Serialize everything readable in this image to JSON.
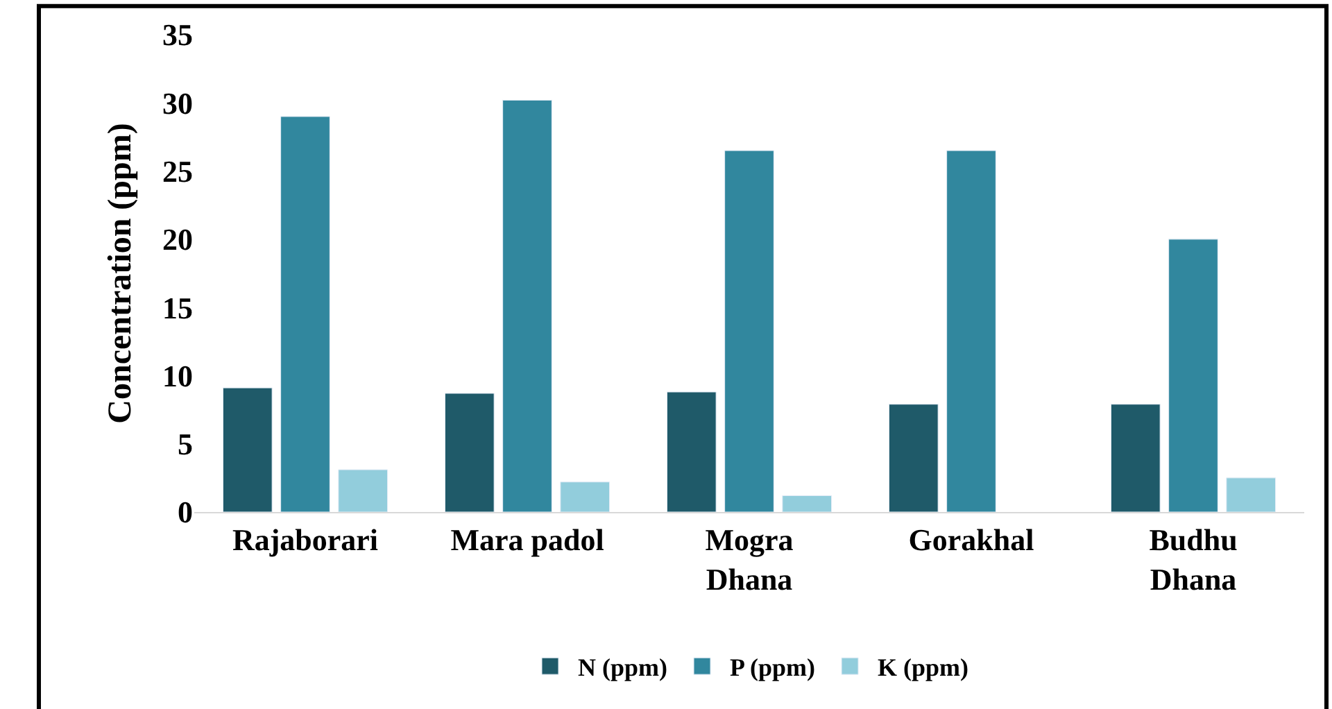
{
  "chart_data": {
    "type": "bar",
    "ylabel": "Concentration (ppm)",
    "categories": [
      "Rajaborari",
      "Mara padol",
      "Mogra\nDhana",
      "Gorakhal",
      "Budhu\nDhana"
    ],
    "series": [
      {
        "name": "N (ppm)",
        "color": "#1f5a69",
        "values": [
          9.1,
          8.7,
          8.8,
          7.9,
          7.9
        ]
      },
      {
        "name": "P (ppm)",
        "color": "#31879e",
        "values": [
          29.0,
          30.2,
          26.5,
          26.5,
          20.0
        ]
      },
      {
        "name": "K (ppm)",
        "color": "#92cddc",
        "values": [
          3.1,
          2.2,
          1.2,
          null,
          2.5
        ]
      }
    ],
    "ylim": [
      0,
      35
    ],
    "yticks": [
      0,
      5,
      10,
      15,
      20,
      25,
      30,
      35
    ],
    "legend": "bottom"
  }
}
